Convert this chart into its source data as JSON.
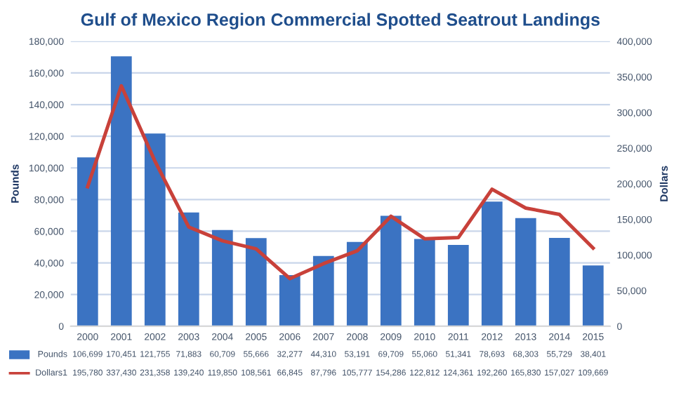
{
  "chart_data": {
    "type": "bar",
    "title": "Gulf of Mexico Region Commercial Spotted Seatrout Landings",
    "categories": [
      "2000",
      "2001",
      "2002",
      "2003",
      "2004",
      "2005",
      "2006",
      "2007",
      "2008",
      "2009",
      "2010",
      "2011",
      "2012",
      "2013",
      "2014",
      "2015"
    ],
    "series": [
      {
        "name": "Pounds",
        "color": "#3b73c2",
        "values": [
          106699,
          170451,
          121755,
          71883,
          60709,
          55666,
          32277,
          44310,
          53191,
          69709,
          55060,
          51341,
          78693,
          68303,
          55729,
          38401
        ],
        "value_labels": [
          "106,699",
          "170,451",
          "121,755",
          "71,883",
          "60,709",
          "55,666",
          "32,277",
          "44,310",
          "53,191",
          "69,709",
          "55,060",
          "51,341",
          "78,693",
          "68,303",
          "55,729",
          "38,401"
        ]
      },
      {
        "name": "Dollars1",
        "type": "line",
        "axis": "y2",
        "color": "#c8413a",
        "values": [
          195780,
          337430,
          231358,
          139240,
          119850,
          108561,
          66845,
          87796,
          105777,
          154286,
          122812,
          124361,
          192260,
          165830,
          157027,
          109669
        ],
        "value_labels": [
          "195,780",
          "337,430",
          "231,358",
          "139,240",
          "119,850",
          "108,561",
          "66,845",
          "87,796",
          "105,777",
          "154,286",
          "122,812",
          "124,361",
          "192,260",
          "165,830",
          "157,027",
          "109,669"
        ]
      }
    ],
    "ylabel": "Pounds",
    "y2label": "Dollars",
    "ylim": [
      0,
      180000
    ],
    "yticks": [
      0,
      {
        "value": 20000,
        "label": "20,000"
      },
      {
        "value": 40000,
        "label": "40,000"
      },
      {
        "value": 60000,
        "label": "60,000"
      },
      {
        "value": 80000,
        "label": "80,000"
      },
      {
        "value": 100000,
        "label": "100,000"
      },
      {
        "value": 120000,
        "label": "120,000"
      },
      {
        "value": 140000,
        "label": "140,000"
      },
      {
        "value": 160000,
        "label": "160,000"
      },
      {
        "value": 180000,
        "label": "180,000"
      }
    ],
    "y2lim": [
      0,
      400000
    ],
    "y2ticks": [
      0,
      {
        "value": 50000,
        "label": "50,000"
      },
      {
        "value": 100000,
        "label": "100,000"
      },
      {
        "value": 150000,
        "label": "150,000"
      },
      {
        "value": 200000,
        "label": "200,000"
      },
      {
        "value": 250000,
        "label": "250,000"
      },
      {
        "value": 300000,
        "label": "300,000"
      },
      {
        "value": 350000,
        "label": "350,000"
      },
      {
        "value": 400000,
        "label": "400,000"
      }
    ],
    "grid": "y",
    "legend": "bottom",
    "marker": "none",
    "line_style": "solid"
  }
}
